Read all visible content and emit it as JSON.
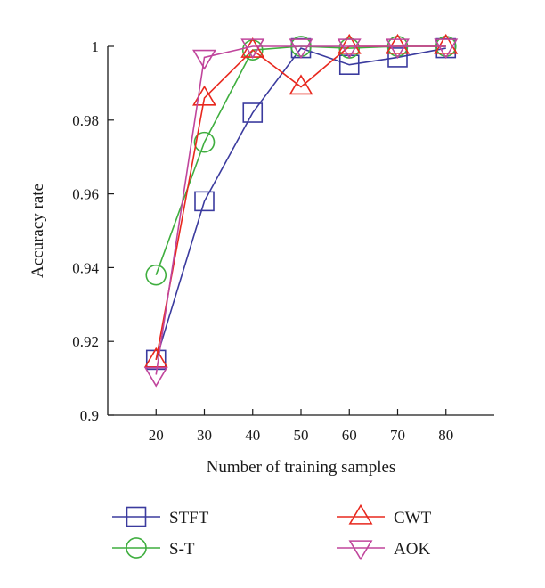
{
  "chart_data": {
    "type": "line",
    "xlabel": "Number of training samples",
    "ylabel": "Accuracy rate",
    "x": [
      20,
      30,
      40,
      50,
      60,
      70,
      80
    ],
    "xlim": [
      10,
      90
    ],
    "ylim": [
      0.9,
      1.0
    ],
    "xticks": [
      20,
      30,
      40,
      50,
      60,
      70,
      80
    ],
    "yticks": [
      0.9,
      0.92,
      0.94,
      0.96,
      0.98,
      1.0
    ],
    "ytick_labels": [
      "0.9",
      "0.92",
      "0.94",
      "0.96",
      "0.98",
      "1"
    ],
    "grid": false,
    "legend_position": "bottom",
    "series": [
      {
        "name": "STFT",
        "marker": "square",
        "color": "#3b3b9e",
        "values": [
          0.915,
          0.958,
          0.982,
          0.9995,
          0.995,
          0.997,
          0.9995
        ]
      },
      {
        "name": "S-T",
        "marker": "circle",
        "color": "#3fae3f",
        "values": [
          0.938,
          0.974,
          0.999,
          1.0,
          0.9995,
          1.0,
          1.0
        ]
      },
      {
        "name": "CWT",
        "marker": "triangle-up",
        "color": "#e8281e",
        "values": [
          0.915,
          0.986,
          0.999,
          0.989,
          1.0,
          1.0,
          1.0
        ]
      },
      {
        "name": "AOK",
        "marker": "triangle-down",
        "color": "#c0459c",
        "values": [
          0.911,
          0.997,
          1.0,
          1.0,
          1.0,
          1.0,
          1.0
        ]
      }
    ]
  }
}
